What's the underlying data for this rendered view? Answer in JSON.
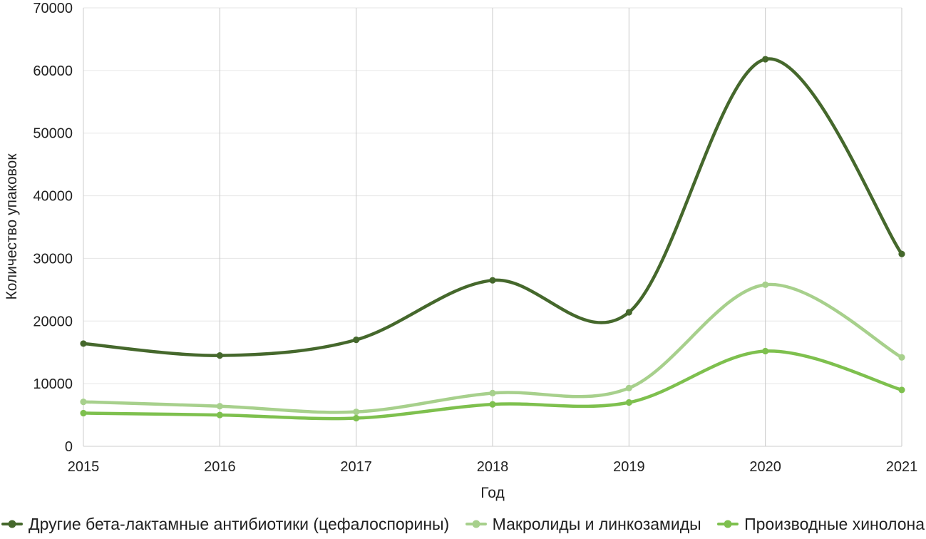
{
  "chart_data": {
    "type": "line",
    "title": "",
    "xlabel": "Год",
    "ylabel": "Количество упаковок",
    "categories": [
      "2015",
      "2016",
      "2017",
      "2018",
      "2019",
      "2020",
      "2021"
    ],
    "yticks": [
      0,
      10000,
      20000,
      30000,
      40000,
      50000,
      60000,
      70000
    ],
    "ylim": [
      0,
      70000
    ],
    "grid": true,
    "line_style": "smooth",
    "markers": true,
    "legend_position": "bottom",
    "series": [
      {
        "name": "Другие бета-лактамные антибиотики (цефалоспорины)",
        "color": "#45682c",
        "values": [
          16400,
          14500,
          17000,
          26500,
          21400,
          61800,
          30700
        ]
      },
      {
        "name": "Макролиды и линкозамиды",
        "color": "#a7d08c",
        "values": [
          7100,
          6400,
          5500,
          8500,
          9300,
          25800,
          14200
        ]
      },
      {
        "name": "Производные хинолона",
        "color": "#7ec04e",
        "values": [
          5300,
          5000,
          4500,
          6700,
          7000,
          15200,
          9000
        ]
      }
    ],
    "colors": {
      "text": "#212121",
      "grid_horizontal": "#e6e6e6",
      "grid_vertical": "#c8c8c8",
      "axis": "#cdcdcd",
      "background": "#ffffff"
    }
  }
}
